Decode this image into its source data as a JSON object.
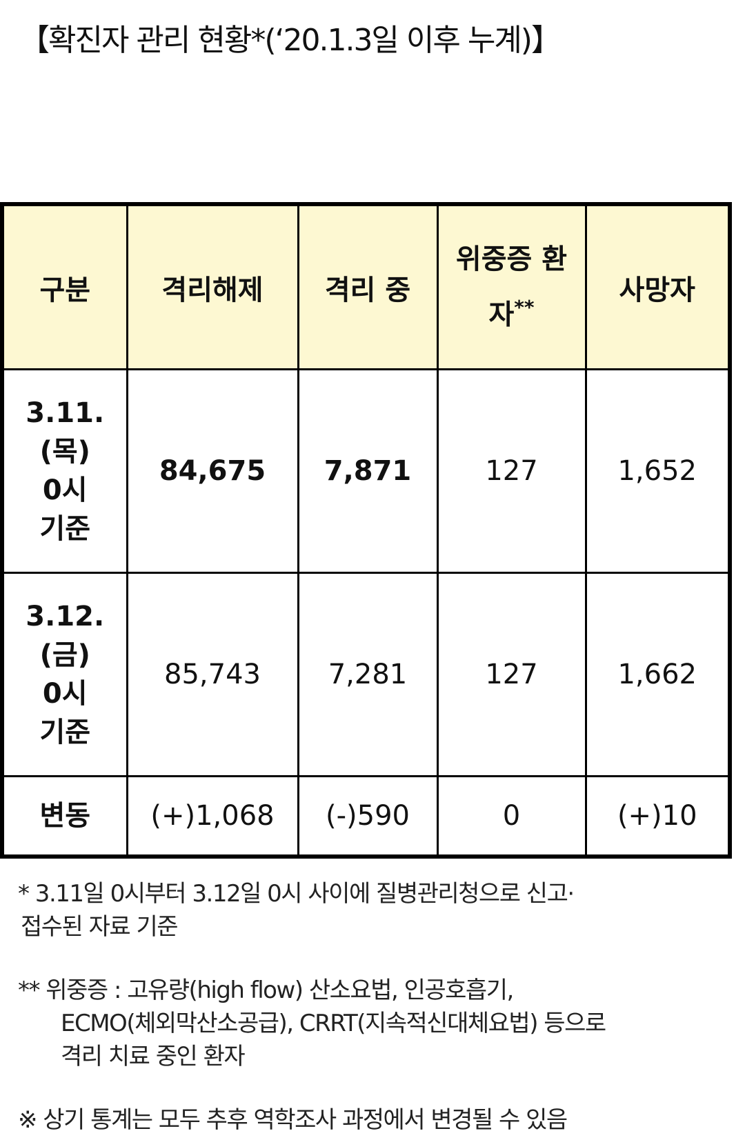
{
  "title": "【확진자 관리 현황*(‘20.1.3일 이후 누계)】",
  "table": {
    "headers": [
      "구분",
      "격리해제",
      "격리 중",
      {
        "text": "위중증 환자",
        "mark": "**"
      },
      "사망자"
    ],
    "rows": [
      [
        [
          "3.11.",
          "(목)",
          "0시",
          "기준"
        ],
        "84,675",
        "7,871",
        "127",
        "1,652"
      ],
      [
        [
          "3.12.",
          "(금)",
          "0시",
          "기준"
        ],
        "85,743",
        "7,281",
        "127",
        "1,662"
      ],
      [
        [
          "변동"
        ],
        "(+)1,068",
        "(-)590",
        "0",
        "(+)10"
      ]
    ]
  },
  "notes": [
    [
      "* 3.11일 0시부터 3.12일 0시 사이에 질병관리청으로 신고·",
      "접수된 자료 기준"
    ],
    [
      "** 위중증 : 고유량(high flow) 산소요법, 인공호흡기,",
      "ECMO(체외막산소공급), CRRT(지속적신대체요법) 등으로",
      "격리 치료 중인 환자"
    ],
    [
      "※ 상기 통계는 모두 추후 역학조사 과정에서 변경될 수 있음"
    ]
  ]
}
